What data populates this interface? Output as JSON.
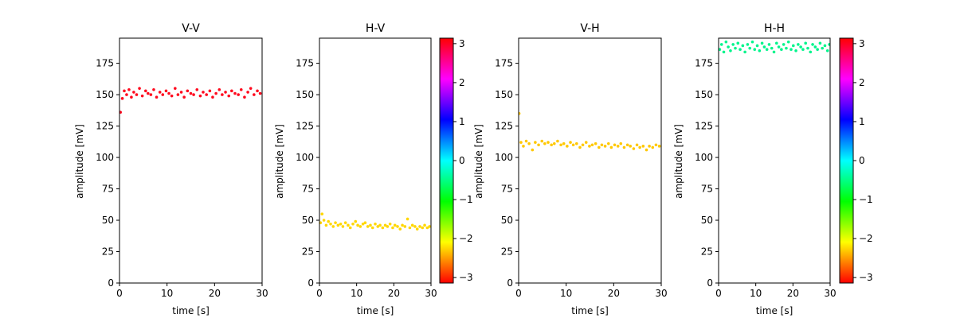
{
  "chart_data": [
    {
      "type": "scatter",
      "title": "V-V",
      "xlabel": "time [s]",
      "ylabel": "amplitude [mV]",
      "xlim": [
        0,
        30
      ],
      "ylim": [
        0,
        195
      ],
      "xticks": [
        "0",
        "10",
        "20",
        "30"
      ],
      "yticks": [
        "0",
        "25",
        "50",
        "75",
        "100",
        "125",
        "150",
        "175"
      ],
      "series": [
        {
          "color": "#ff0a1e",
          "phase": 3.1,
          "points": [
            [
              0.2,
              136
            ],
            [
              0.6,
              147
            ],
            [
              1.0,
              153
            ],
            [
              1.5,
              150
            ],
            [
              2.0,
              154
            ],
            [
              2.5,
              148
            ],
            [
              3.0,
              152
            ],
            [
              3.6,
              150
            ],
            [
              4.2,
              155
            ],
            [
              4.8,
              149
            ],
            [
              5.5,
              153
            ],
            [
              6.0,
              151
            ],
            [
              6.6,
              150
            ],
            [
              7.2,
              154
            ],
            [
              7.8,
              148
            ],
            [
              8.5,
              152
            ],
            [
              9.1,
              150
            ],
            [
              9.8,
              153
            ],
            [
              10.4,
              151
            ],
            [
              11.0,
              149
            ],
            [
              11.7,
              155
            ],
            [
              12.3,
              150
            ],
            [
              13.0,
              152
            ],
            [
              13.6,
              148
            ],
            [
              14.3,
              153
            ],
            [
              15.0,
              151
            ],
            [
              15.6,
              150
            ],
            [
              16.3,
              154
            ],
            [
              17.0,
              149
            ],
            [
              17.6,
              152
            ],
            [
              18.3,
              150
            ],
            [
              19.0,
              153
            ],
            [
              19.6,
              148
            ],
            [
              20.3,
              151
            ],
            [
              21.0,
              154
            ],
            [
              21.6,
              150
            ],
            [
              22.3,
              152
            ],
            [
              23.0,
              149
            ],
            [
              23.6,
              153
            ],
            [
              24.3,
              151
            ],
            [
              25.0,
              150
            ],
            [
              25.6,
              154
            ],
            [
              26.3,
              148
            ],
            [
              27.0,
              152
            ],
            [
              27.6,
              155
            ],
            [
              28.3,
              150
            ],
            [
              29.0,
              153
            ],
            [
              29.6,
              151
            ]
          ]
        }
      ]
    },
    {
      "type": "scatter",
      "title": "H-V",
      "xlabel": "time [s]",
      "ylabel": "amplitude [mV]",
      "xlim": [
        0,
        30
      ],
      "ylim": [
        0,
        195
      ],
      "xticks": [
        "0",
        "10",
        "20",
        "30"
      ],
      "yticks": [
        "0",
        "25",
        "50",
        "75",
        "100",
        "125",
        "150",
        "175"
      ],
      "colorbar": {
        "ticks": [
          "−3",
          "−2",
          "−1",
          "0",
          "1",
          "2",
          "3"
        ],
        "range": [
          -3.14,
          3.14
        ]
      },
      "series": [
        {
          "color": "#ffd700",
          "phase": -2.3,
          "points": [
            [
              0.3,
              48
            ],
            [
              0.7,
              55
            ],
            [
              1.2,
              50
            ],
            [
              1.8,
              46
            ],
            [
              2.4,
              49
            ],
            [
              3.0,
              47
            ],
            [
              3.7,
              45
            ],
            [
              4.3,
              48
            ],
            [
              5.0,
              46
            ],
            [
              5.7,
              47
            ],
            [
              6.3,
              45
            ],
            [
              7.0,
              48
            ],
            [
              7.7,
              46
            ],
            [
              8.3,
              44
            ],
            [
              9.0,
              47
            ],
            [
              9.7,
              49
            ],
            [
              10.3,
              46
            ],
            [
              11.0,
              45
            ],
            [
              11.7,
              47
            ],
            [
              12.3,
              48
            ],
            [
              13.0,
              45
            ],
            [
              13.7,
              46
            ],
            [
              14.3,
              44
            ],
            [
              15.0,
              47
            ],
            [
              15.7,
              45
            ],
            [
              16.3,
              46
            ],
            [
              17.0,
              44
            ],
            [
              17.7,
              46
            ],
            [
              18.3,
              45
            ],
            [
              19.0,
              47
            ],
            [
              19.7,
              44
            ],
            [
              20.3,
              46
            ],
            [
              21.0,
              45
            ],
            [
              21.7,
              43
            ],
            [
              22.3,
              46
            ],
            [
              23.0,
              45
            ],
            [
              23.7,
              51
            ],
            [
              24.3,
              44
            ],
            [
              25.0,
              46
            ],
            [
              25.7,
              45
            ],
            [
              26.3,
              43
            ],
            [
              27.0,
              45
            ],
            [
              27.7,
              44
            ],
            [
              28.3,
              46
            ],
            [
              29.0,
              44
            ],
            [
              29.6,
              45
            ]
          ]
        }
      ]
    },
    {
      "type": "scatter",
      "title": "V-H",
      "xlabel": "time [s]",
      "ylabel": "amplitude [mV]",
      "xlim": [
        0,
        30
      ],
      "ylim": [
        0,
        195
      ],
      "xticks": [
        "0",
        "10",
        "20",
        "30"
      ],
      "yticks": [
        "0",
        "25",
        "50",
        "75",
        "100",
        "125",
        "150",
        "175"
      ],
      "series": [
        {
          "color": "#ffc800",
          "phase": -2.4,
          "points": [
            [
              0.1,
              135
            ],
            [
              0.5,
              112
            ],
            [
              1.0,
              109
            ],
            [
              1.6,
              113
            ],
            [
              2.2,
              111
            ],
            [
              2.9,
              106
            ],
            [
              3.5,
              112
            ],
            [
              4.2,
              110
            ],
            [
              4.9,
              113
            ],
            [
              5.5,
              111
            ],
            [
              6.2,
              112
            ],
            [
              6.9,
              110
            ],
            [
              7.5,
              111
            ],
            [
              8.2,
              113
            ],
            [
              8.9,
              110
            ],
            [
              9.5,
              111
            ],
            [
              10.2,
              109
            ],
            [
              10.9,
              112
            ],
            [
              11.5,
              110
            ],
            [
              12.2,
              111
            ],
            [
              12.9,
              108
            ],
            [
              13.5,
              110
            ],
            [
              14.2,
              112
            ],
            [
              14.9,
              109
            ],
            [
              15.5,
              110
            ],
            [
              16.2,
              111
            ],
            [
              16.9,
              108
            ],
            [
              17.5,
              110
            ],
            [
              18.2,
              109
            ],
            [
              18.9,
              111
            ],
            [
              19.5,
              108
            ],
            [
              20.2,
              110
            ],
            [
              20.9,
              109
            ],
            [
              21.5,
              111
            ],
            [
              22.2,
              108
            ],
            [
              22.9,
              110
            ],
            [
              23.5,
              109
            ],
            [
              24.2,
              107
            ],
            [
              24.9,
              110
            ],
            [
              25.5,
              108
            ],
            [
              26.2,
              109
            ],
            [
              26.9,
              106
            ],
            [
              27.5,
              109
            ],
            [
              28.2,
              108
            ],
            [
              28.9,
              110
            ],
            [
              29.6,
              109
            ]
          ]
        }
      ]
    },
    {
      "type": "scatter",
      "title": "H-H",
      "xlabel": "time [s]",
      "ylabel": "amplitude [mV]",
      "xlim": [
        0,
        30
      ],
      "ylim": [
        0,
        195
      ],
      "xticks": [
        "0",
        "10",
        "20",
        "30"
      ],
      "yticks": [
        "0",
        "25",
        "50",
        "75",
        "100",
        "125",
        "150",
        "175"
      ],
      "colorbar": {
        "ticks": [
          "−3",
          "−2",
          "−1",
          "0",
          "1",
          "2",
          "3"
        ],
        "range": [
          -3.14,
          3.14
        ]
      },
      "series": [
        {
          "color": "#00f58c",
          "phase": -0.6,
          "points": [
            [
              0.3,
              186
            ],
            [
              0.8,
              190
            ],
            [
              1.4,
              184
            ],
            [
              2.0,
              192
            ],
            [
              2.6,
              188
            ],
            [
              3.2,
              185
            ],
            [
              3.9,
              190
            ],
            [
              4.5,
              187
            ],
            [
              5.2,
              191
            ],
            [
              5.8,
              186
            ],
            [
              6.5,
              189
            ],
            [
              7.1,
              184
            ],
            [
              7.8,
              190
            ],
            [
              8.4,
              187
            ],
            [
              9.1,
              192
            ],
            [
              9.7,
              186
            ],
            [
              10.4,
              189
            ],
            [
              11.0,
              185
            ],
            [
              11.7,
              191
            ],
            [
              12.3,
              188
            ],
            [
              13.0,
              186
            ],
            [
              13.6,
              190
            ],
            [
              14.3,
              187
            ],
            [
              14.9,
              184
            ],
            [
              15.6,
              191
            ],
            [
              16.2,
              188
            ],
            [
              16.9,
              186
            ],
            [
              17.5,
              190
            ],
            [
              18.2,
              187
            ],
            [
              18.8,
              192
            ],
            [
              19.5,
              186
            ],
            [
              20.1,
              189
            ],
            [
              20.8,
              185
            ],
            [
              21.4,
              190
            ],
            [
              22.1,
              188
            ],
            [
              22.7,
              186
            ],
            [
              23.4,
              191
            ],
            [
              24.0,
              187
            ],
            [
              24.7,
              184
            ],
            [
              25.3,
              190
            ],
            [
              26.0,
              188
            ],
            [
              26.6,
              186
            ],
            [
              27.3,
              191
            ],
            [
              27.9,
              187
            ],
            [
              28.6,
              189
            ],
            [
              29.3,
              185
            ],
            [
              29.8,
              190
            ]
          ]
        }
      ]
    }
  ]
}
